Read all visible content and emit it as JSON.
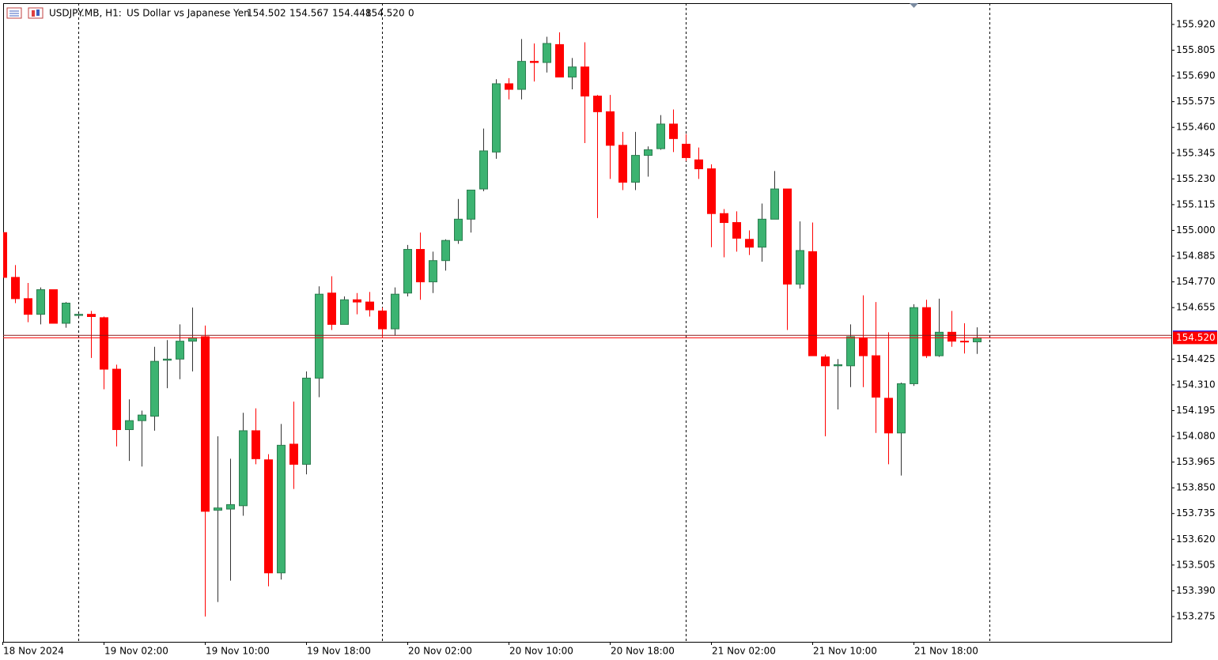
{
  "header": {
    "symbol": "USDJPY.MB, H1:",
    "description": "US Dollar vs Japanese Yen",
    "ohlc": [
      "154.502",
      "154.567",
      "154.448",
      "154.520"
    ],
    "volume": "0"
  },
  "chart_data": {
    "type": "candlestick",
    "categories": [
      "18 Nov 2024",
      null,
      null,
      null,
      null,
      null,
      null,
      null,
      "19 Nov 02:00",
      null,
      null,
      null,
      null,
      null,
      null,
      null,
      "19 Nov 10:00",
      null,
      null,
      null,
      null,
      null,
      null,
      null,
      "19 Nov 18:00",
      null,
      null,
      null,
      null,
      null,
      null,
      null,
      "20 Nov 02:00",
      null,
      null,
      null,
      null,
      null,
      null,
      null,
      "20 Nov 10:00",
      null,
      null,
      null,
      null,
      null,
      null,
      null,
      "20 Nov 18:00",
      null,
      null,
      null,
      null,
      null,
      null,
      null,
      "21 Nov 02:00",
      null,
      null,
      null,
      null,
      null,
      null,
      null,
      "21 Nov 10:00",
      null,
      null,
      null,
      null,
      null,
      null,
      null,
      "21 Nov 18:00",
      null,
      null,
      null,
      null,
      null
    ],
    "open": [
      154.99,
      154.79,
      154.695,
      154.625,
      154.735,
      154.585,
      154.62,
      154.625,
      154.61,
      154.38,
      154.11,
      154.15,
      154.17,
      154.42,
      154.425,
      154.505,
      154.525,
      153.75,
      153.755,
      153.77,
      154.105,
      153.975,
      153.47,
      154.045,
      153.955,
      154.34,
      154.72,
      154.58,
      154.69,
      154.68,
      154.64,
      154.56,
      154.72,
      154.915,
      154.77,
      154.865,
      154.955,
      155.05,
      155.185,
      155.35,
      155.655,
      155.63,
      155.755,
      155.75,
      155.83,
      155.685,
      155.73,
      155.6,
      155.53,
      155.38,
      155.215,
      155.335,
      155.365,
      155.475,
      155.385,
      155.315,
      155.275,
      155.075,
      155.035,
      154.96,
      154.925,
      155.05,
      155.185,
      154.76,
      154.905,
      154.435,
      154.395,
      154.395,
      154.52,
      154.44,
      154.25,
      154.095,
      154.315,
      154.655,
      154.44,
      154.545,
      154.505,
      154.502
    ],
    "high": [
      155.0,
      154.845,
      154.765,
      154.745,
      154.735,
      154.68,
      154.63,
      154.64,
      154.615,
      154.4,
      154.245,
      154.195,
      154.48,
      154.51,
      154.58,
      154.655,
      154.575,
      154.08,
      153.98,
      154.185,
      154.205,
      154.0,
      154.135,
      154.235,
      154.37,
      154.75,
      154.795,
      154.705,
      154.72,
      154.725,
      154.655,
      154.745,
      154.935,
      154.99,
      154.905,
      154.96,
      155.14,
      155.18,
      155.455,
      155.675,
      155.68,
      155.855,
      155.835,
      155.865,
      155.885,
      155.77,
      155.84,
      155.605,
      155.605,
      155.44,
      155.44,
      155.375,
      155.515,
      155.54,
      155.43,
      155.37,
      155.295,
      155.095,
      155.085,
      155.0,
      155.12,
      155.265,
      155.185,
      155.04,
      155.035,
      154.445,
      154.425,
      154.58,
      154.71,
      154.68,
      154.545,
      154.32,
      154.67,
      154.69,
      154.695,
      154.64,
      154.585,
      154.567
    ],
    "low": [
      154.78,
      154.675,
      154.59,
      154.58,
      154.585,
      154.565,
      154.615,
      154.43,
      154.29,
      154.035,
      153.97,
      153.945,
      154.105,
      154.295,
      154.335,
      154.37,
      153.275,
      153.34,
      153.435,
      153.725,
      153.955,
      153.41,
      153.44,
      153.845,
      153.91,
      154.255,
      154.555,
      154.58,
      154.625,
      154.615,
      154.52,
      154.53,
      154.705,
      154.69,
      154.72,
      154.82,
      154.94,
      154.99,
      155.175,
      155.32,
      155.585,
      155.585,
      155.665,
      155.705,
      155.685,
      155.63,
      155.39,
      155.055,
      155.23,
      155.18,
      155.18,
      155.24,
      155.36,
      155.35,
      155.31,
      155.23,
      154.925,
      154.88,
      154.905,
      154.89,
      154.86,
      155.05,
      154.555,
      154.74,
      154.44,
      154.08,
      154.2,
      154.3,
      154.3,
      154.095,
      153.955,
      153.905,
      154.305,
      154.43,
      154.435,
      154.48,
      154.45,
      154.448
    ],
    "close": [
      154.79,
      154.695,
      154.625,
      154.735,
      154.585,
      154.675,
      154.625,
      154.615,
      154.38,
      154.11,
      154.15,
      154.175,
      154.415,
      154.425,
      154.505,
      154.52,
      153.745,
      153.76,
      153.775,
      154.105,
      153.98,
      153.47,
      154.04,
      153.955,
      154.34,
      154.715,
      154.58,
      154.69,
      154.68,
      154.645,
      154.56,
      154.715,
      154.915,
      154.77,
      154.865,
      154.955,
      155.05,
      155.18,
      155.355,
      155.655,
      155.63,
      155.755,
      155.75,
      155.835,
      155.685,
      155.73,
      155.6,
      155.53,
      155.38,
      155.215,
      155.335,
      155.36,
      155.475,
      155.41,
      155.325,
      155.275,
      155.075,
      155.035,
      154.965,
      154.925,
      155.05,
      155.185,
      154.76,
      154.91,
      154.44,
      154.395,
      154.4,
      154.525,
      154.44,
      154.255,
      154.095,
      154.315,
      154.655,
      154.44,
      154.545,
      154.505,
      154.502,
      154.52
    ],
    "up_color": "#3cb371",
    "down_color": "#ff0000",
    "ylim": [
      153.162,
      156.015
    ],
    "yticks": [
      {
        "value": 155.92,
        "label": "155.920"
      },
      155.805,
      {
        "value": 155.69,
        "label": "155.690"
      },
      155.575,
      {
        "value": 155.46,
        "label": "155.460"
      },
      155.345,
      {
        "value": 155.23,
        "label": "155.230"
      },
      155.115,
      {
        "value": 155.0,
        "label": "155.000"
      },
      154.885,
      {
        "value": 154.77,
        "label": "154.770"
      },
      154.655,
      154.425,
      {
        "value": 154.31,
        "label": "154.310"
      },
      154.195,
      {
        "value": 154.08,
        "label": "154.080"
      },
      153.965,
      {
        "value": 153.85,
        "label": "153.850"
      },
      153.735,
      {
        "value": 153.62,
        "label": "153.620"
      },
      153.505,
      {
        "value": 153.39,
        "label": "153.390"
      },
      153.275
    ],
    "bid": {
      "value": 154.52,
      "label": "154.520"
    },
    "ask": 154.531,
    "period_separators": [
      6,
      30,
      54,
      78
    ]
  }
}
